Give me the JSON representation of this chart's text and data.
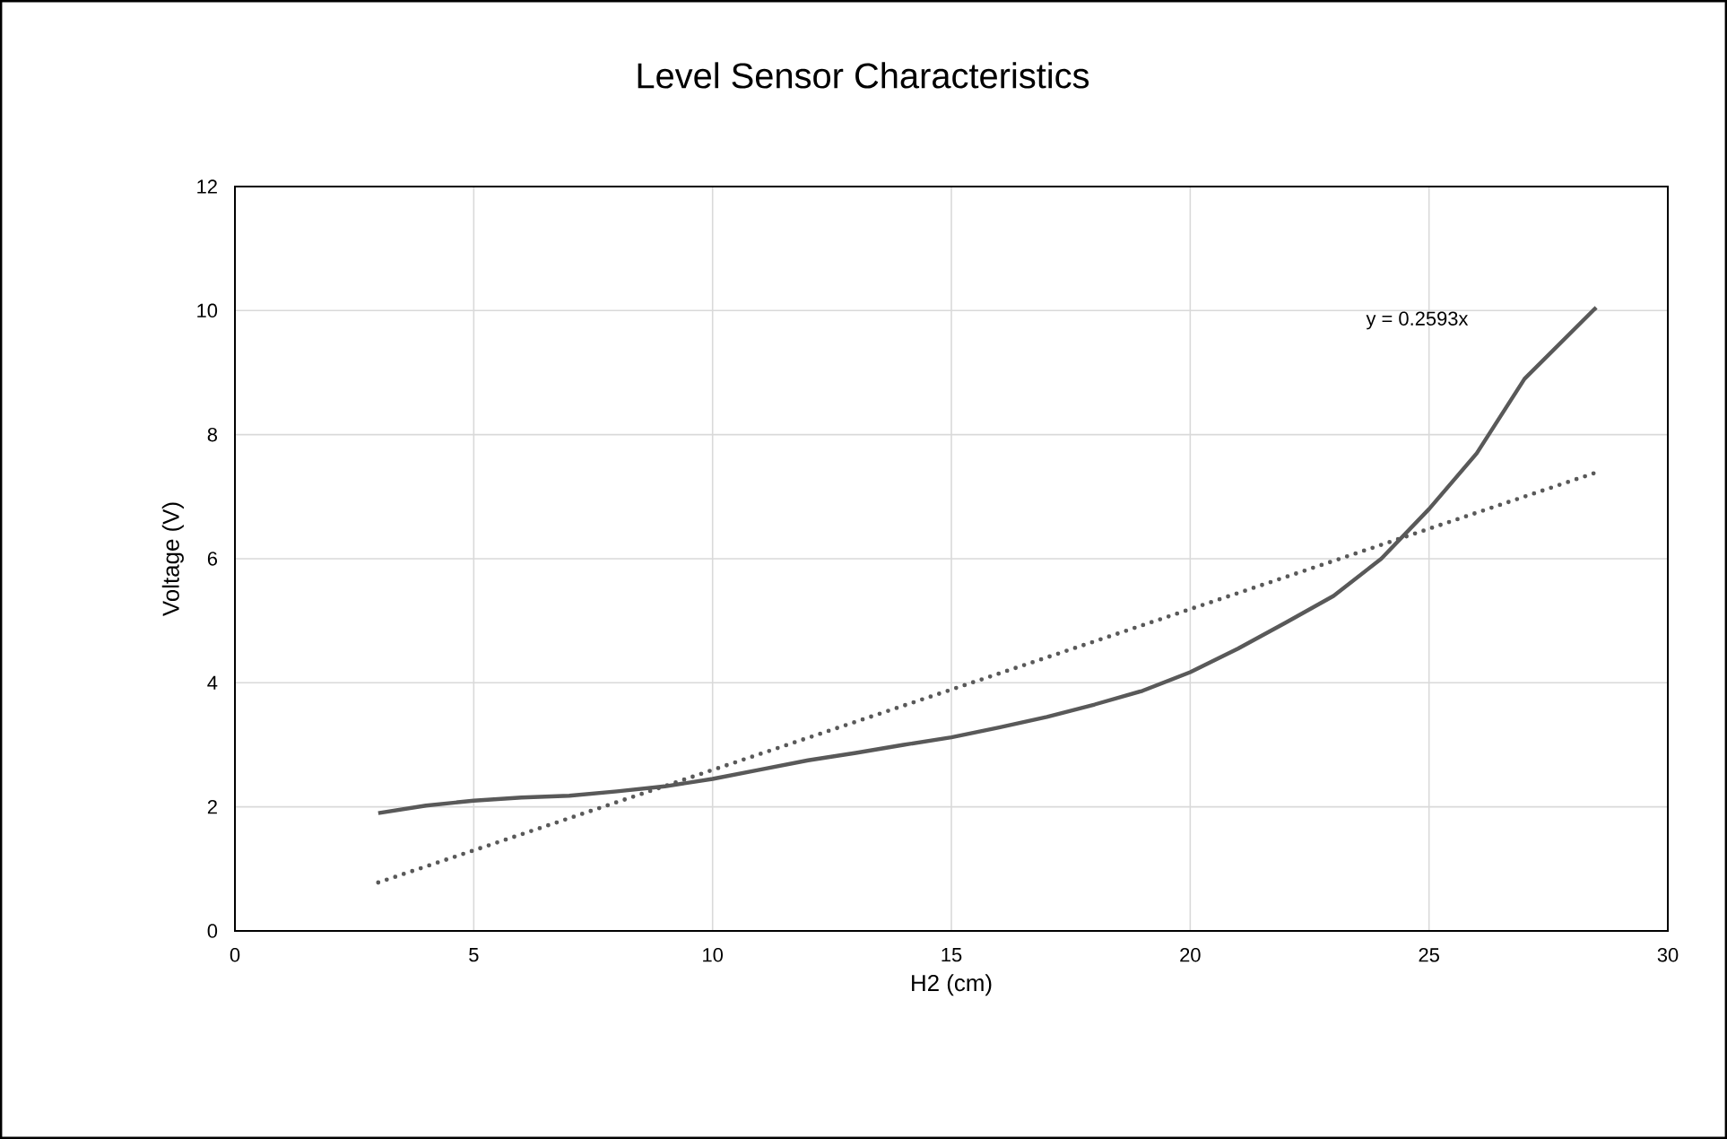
{
  "chart_data": {
    "type": "line",
    "title": "Level Sensor Characteristics",
    "xlabel": "H2 (cm)",
    "ylabel": "Voltage (V)",
    "series": [
      {
        "color": "#595959",
        "line_style": "solid",
        "x": [
          3,
          4,
          5,
          6,
          7,
          8,
          9,
          10,
          11,
          12,
          13,
          14,
          15,
          16,
          17,
          18,
          19,
          20,
          21,
          22,
          23,
          24,
          25,
          26,
          27,
          28.5
        ],
        "values": [
          1.9,
          2.02,
          2.1,
          2.15,
          2.18,
          2.25,
          2.33,
          2.45,
          2.6,
          2.75,
          2.87,
          3.0,
          3.12,
          3.28,
          3.45,
          3.65,
          3.87,
          4.17,
          4.55,
          4.97,
          5.4,
          6.0,
          6.8,
          7.7,
          8.9,
          10.05
        ]
      },
      {
        "color": "#595959",
        "line_style": "dotted",
        "x": [
          3,
          28.5
        ],
        "values": [
          0.78,
          7.39
        ]
      }
    ],
    "annotations": [
      "y = 0.2593x"
    ],
    "xlim": [
      0,
      30
    ],
    "xticks": [
      0,
      5,
      10,
      15,
      20,
      25,
      30
    ],
    "ylim": [
      0,
      12
    ],
    "yticks": [
      0,
      2,
      4,
      6,
      8,
      10,
      12
    ],
    "grid": true,
    "marker": "none"
  }
}
